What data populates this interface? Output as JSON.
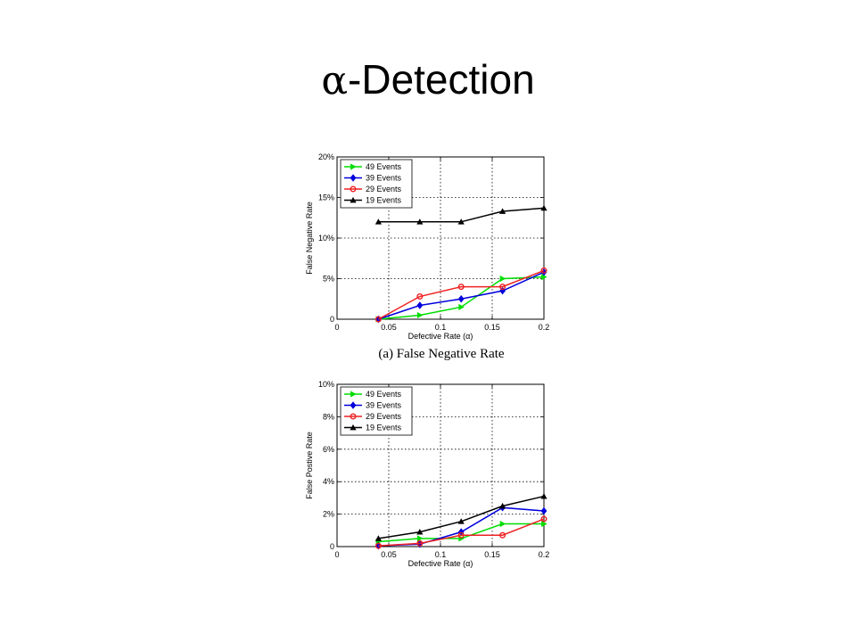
{
  "slide": {
    "title_symbol": "α",
    "title_text": "-Detection"
  },
  "chart_data": [
    {
      "type": "line",
      "caption": "(a) False Negative Rate",
      "xlabel": "Defective Rate (α)",
      "ylabel": "False Negative Rate",
      "xlim": [
        0,
        0.2
      ],
      "ylim": [
        0,
        20
      ],
      "xticks": [
        "0",
        "0.05",
        "0.1",
        "0.15",
        "0.2"
      ],
      "yticks": [
        "0",
        "5%",
        "10%",
        "15%",
        "20%"
      ],
      "grid": true,
      "legend_position": "top-left",
      "x": [
        0.04,
        0.08,
        0.12,
        0.16,
        0.2
      ],
      "series": [
        {
          "name": "49 Events",
          "color": "#00dd00",
          "marker": "triangle-right",
          "values": [
            0,
            0.5,
            1.5,
            5.0,
            5.2
          ]
        },
        {
          "name": "39 Events",
          "color": "#0000dd",
          "marker": "diamond",
          "values": [
            0,
            1.7,
            2.5,
            3.5,
            5.8
          ]
        },
        {
          "name": "29 Events",
          "color": "#ee2222",
          "marker": "circle",
          "values": [
            0,
            2.8,
            4.0,
            4.0,
            6.0
          ]
        },
        {
          "name": "19 Events",
          "color": "#000000",
          "marker": "triangle-up",
          "values": [
            12.0,
            12.0,
            12.0,
            13.3,
            13.7
          ]
        }
      ]
    },
    {
      "type": "line",
      "caption": "",
      "xlabel": "Defective Rate (α)",
      "ylabel": "False Postive Rate",
      "xlim": [
        0,
        0.2
      ],
      "ylim": [
        0,
        10
      ],
      "xticks": [
        "0",
        "0.05",
        "0.1",
        "0.15",
        "0.2"
      ],
      "yticks": [
        "0",
        "2%",
        "4%",
        "6%",
        "8%",
        "10%"
      ],
      "grid": true,
      "legend_position": "top-left",
      "x": [
        0.04,
        0.08,
        0.12,
        0.16,
        0.2
      ],
      "series": [
        {
          "name": "49 Events",
          "color": "#00dd00",
          "marker": "triangle-right",
          "values": [
            0.3,
            0.5,
            0.5,
            1.4,
            1.4
          ]
        },
        {
          "name": "39 Events",
          "color": "#0000dd",
          "marker": "diamond",
          "values": [
            0.05,
            0.15,
            0.9,
            2.4,
            2.2
          ]
        },
        {
          "name": "29 Events",
          "color": "#ee2222",
          "marker": "circle",
          "values": [
            0.05,
            0.2,
            0.7,
            0.7,
            1.7
          ]
        },
        {
          "name": "19 Events",
          "color": "#000000",
          "marker": "triangle-up",
          "values": [
            0.5,
            0.9,
            1.55,
            2.5,
            3.1
          ]
        }
      ]
    }
  ]
}
